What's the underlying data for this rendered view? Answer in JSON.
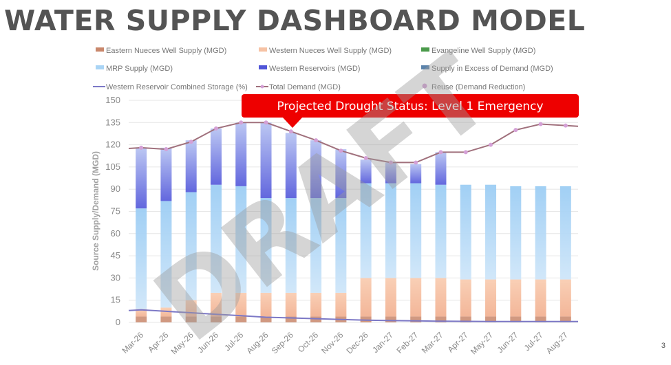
{
  "page": {
    "title": "WATER SUPPLY DASHBOARD MODEL",
    "page_number": "3",
    "watermark": "DRAFT"
  },
  "callout": {
    "text": "Projected Drought Status: Level 1 Emergency",
    "color": "#ee0000"
  },
  "colors": {
    "eastern": "#c9876b",
    "western_nueces": "#f6c2a4",
    "evangeline": "#4a9a4a",
    "mrp": "#a9d4f5",
    "reservoirs_top": "#5055d8",
    "reservoirs_bottom": "#b8c8f2",
    "excess": "#5b83ab",
    "storage_line": "#7c78c6",
    "demand_line": "#a0707c",
    "reuse_marker": "#d4a0d6",
    "axis_text": "#8a8a8a",
    "grid": "#e6e6e6"
  },
  "chart_data": {
    "type": "bar",
    "stacked": true,
    "ylabel": "Source Supply/Demand (MGD)",
    "ylim": [
      0,
      150
    ],
    "yticks": [
      0,
      15,
      30,
      45,
      60,
      75,
      90,
      105,
      120,
      135,
      150
    ],
    "grid": true,
    "legend_position": "top",
    "categories": [
      "Mar-26",
      "Apr-26",
      "May-26",
      "Jun-26",
      "Jul-26",
      "Aug-26",
      "Sep-26",
      "Oct-26",
      "Nov-26",
      "Dec-26",
      "Jan-27",
      "Feb-27",
      "Mar-27",
      "Apr-27",
      "May-27",
      "Jun-27",
      "Jul-27",
      "Aug-27"
    ],
    "series": [
      {
        "name": "Eastern Nueces Well Supply (MGD)",
        "kind": "bar",
        "values": [
          4,
          4,
          4,
          4,
          4,
          4,
          4,
          4,
          4,
          4,
          4,
          4,
          4,
          4,
          4,
          4,
          4,
          4
        ]
      },
      {
        "name": "Western Nueces Well Supply (MGD)",
        "kind": "bar",
        "values": [
          5,
          6,
          11,
          16,
          16,
          16,
          16,
          16,
          16,
          26,
          26,
          26,
          26,
          25,
          25,
          25,
          25,
          25
        ]
      },
      {
        "name": "Evangeline Well Supply (MGD)",
        "kind": "bar",
        "values": [
          0,
          0,
          0,
          0,
          0,
          0,
          0,
          0,
          0,
          0,
          0,
          0,
          0,
          0,
          0,
          0,
          0,
          0
        ]
      },
      {
        "name": "MRP Supply (MGD)",
        "kind": "bar",
        "values": [
          68,
          72,
          73,
          73,
          72,
          64,
          64,
          64,
          64,
          64,
          64,
          64,
          63,
          64,
          64,
          63,
          63,
          63
        ]
      },
      {
        "name": "Western Reservoirs (MGD)",
        "kind": "bar",
        "values": [
          41,
          36,
          35,
          38,
          43,
          51,
          44,
          39,
          33,
          16,
          14,
          13,
          22,
          0,
          0,
          0,
          0,
          0
        ]
      },
      {
        "name": "Supply in Excess of Demand (MGD)",
        "kind": "bar",
        "values": [
          0,
          0,
          0,
          0,
          0,
          0,
          0,
          0,
          0,
          0,
          0,
          0,
          0,
          0,
          0,
          0,
          0,
          0
        ]
      },
      {
        "name": "Western Reservoir Combined Storage (%)",
        "kind": "line",
        "values": [
          8.5,
          7.5,
          6.5,
          5.5,
          4.5,
          3.5,
          3,
          2.5,
          2,
          1.5,
          1.2,
          1,
          0.8,
          0.7,
          0.6,
          0.6,
          0.6,
          0.6
        ]
      },
      {
        "name": "Total Demand (MGD)",
        "kind": "line",
        "values": [
          118,
          117,
          122,
          131,
          135,
          135,
          129,
          123,
          116,
          111,
          108,
          108,
          115,
          115,
          120,
          130,
          134,
          133
        ]
      },
      {
        "name": "Reuse (Demand Reduction)",
        "kind": "marker",
        "values": [
          118,
          117,
          122,
          131,
          135,
          135,
          129,
          123,
          116,
          111,
          108,
          108,
          115,
          115,
          120,
          130,
          134,
          133
        ]
      }
    ]
  }
}
